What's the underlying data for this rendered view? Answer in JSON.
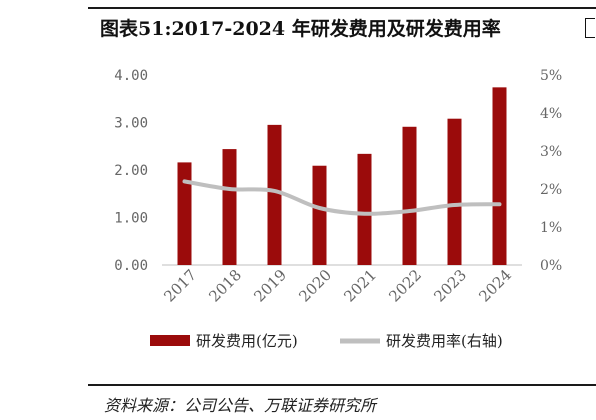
{
  "title": "图表51:2017-2024 年研发费用及研发费用率",
  "source": "资料来源：公司公告、万联证券研究所",
  "colors": {
    "bar": "#9b0b0b",
    "line": "#bfbfbf",
    "axis_text": "#666666"
  },
  "chart_data": {
    "type": "bar+line",
    "categories": [
      "2017",
      "2018",
      "2019",
      "2020",
      "2021",
      "2022",
      "2023",
      "2024"
    ],
    "series": [
      {
        "name": "研发费用(亿元)",
        "type": "bar",
        "axis": "left",
        "values": [
          2.16,
          2.44,
          2.95,
          2.09,
          2.34,
          2.91,
          3.08,
          3.74
        ]
      },
      {
        "name": "研发费用率(右轴)",
        "type": "line",
        "axis": "right",
        "values": [
          2.2,
          2.0,
          1.95,
          1.5,
          1.35,
          1.42,
          1.58,
          1.6
        ]
      }
    ],
    "y_left": {
      "min": 0,
      "max": 4,
      "ticks": [
        "0.00",
        "1.00",
        "2.00",
        "3.00",
        "4.00"
      ]
    },
    "y_right": {
      "min": 0,
      "max": 5,
      "ticks": [
        "0%",
        "1%",
        "2%",
        "3%",
        "4%",
        "5%"
      ]
    },
    "grid": false,
    "legend_position": "bottom"
  }
}
